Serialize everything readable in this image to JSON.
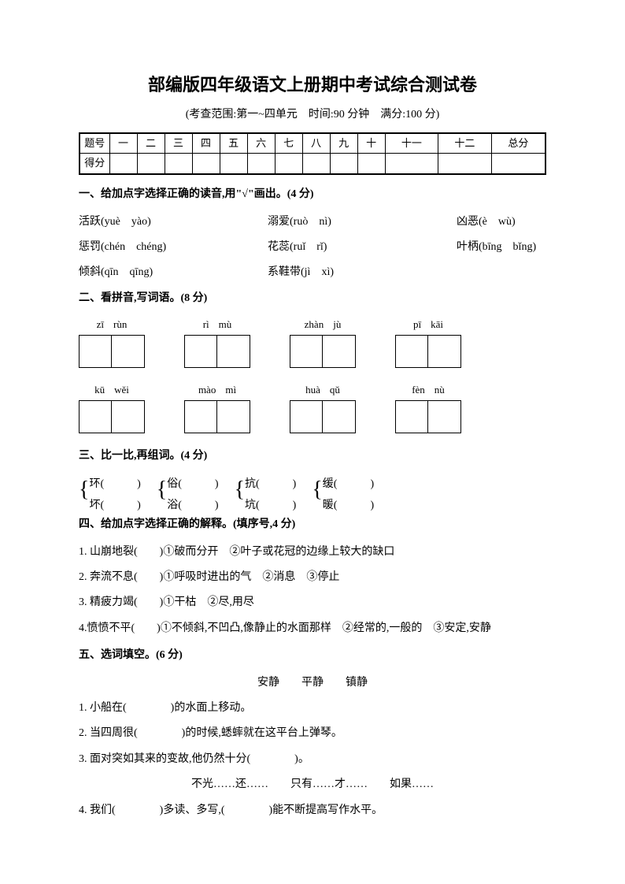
{
  "title": "部编版四年级语文上册期中考试综合测试卷",
  "subtitle": "(考查范围:第一~四单元　时间:90 分钟　满分:100 分)",
  "score_table": {
    "row1": [
      "题号",
      "一",
      "二",
      "三",
      "四",
      "五",
      "六",
      "七",
      "八",
      "九",
      "十",
      "十一",
      "十二",
      "总分"
    ],
    "row2_label": "得分"
  },
  "q1": {
    "heading": "一、给加点字选择正确的读音,用\"√\"画出。(4 分)",
    "items": [
      [
        "活跃(yuè　yào)",
        "溺爱(ruò　nì)",
        "凶恶(è　wù)"
      ],
      [
        "惩罚(chén　chéng)",
        "花蕊(ruǐ　rǐ)",
        "叶柄(bīng　bǐng)"
      ],
      [
        "倾斜(qīn　qīng)",
        "系鞋带(jì　xì)",
        ""
      ]
    ]
  },
  "q2": {
    "heading": "二、看拼音,写词语。(8 分)",
    "rows": [
      [
        [
          "zī",
          "rùn"
        ],
        [
          "rì",
          "mù"
        ],
        [
          "zhàn",
          "jù"
        ],
        [
          "pī",
          "kāi"
        ]
      ],
      [
        [
          "kū",
          "wěi"
        ],
        [
          "mào",
          "mì"
        ],
        [
          "huà",
          "qǔ"
        ],
        [
          "fèn",
          "nù"
        ]
      ]
    ]
  },
  "q3": {
    "heading": "三、比一比,再组词。(4 分)",
    "pairs": [
      [
        [
          "环(",
          "坏("
        ],
        [
          "俗(",
          "浴("
        ],
        [
          "抗(",
          "坑("
        ],
        [
          "缓(",
          "暖("
        ]
      ]
    ]
  },
  "q4": {
    "heading": "四、给加点字选择正确的解释。(填序号,4 分)",
    "items": [
      "1. 山崩地裂(　　)①破而分开　②叶子或花冠的边缘上较大的缺口",
      "2. 奔流不息(　　)①呼吸时进出的气　②消息　③停止",
      "3. 精疲力竭(　　)①干枯　②尽,用尽",
      "4.愤愤不平(　　)①不倾斜,不凹凸,像静止的水面那样　②经常的,一般的　③安定,安静"
    ]
  },
  "q5": {
    "heading": "五、选词填空。(6 分)",
    "words1": "安静　　平静　　镇静",
    "items1": [
      "1. 小船在(　　　　)的水面上移动。",
      "2. 当四周很(　　　　)的时候,蟋蟀就在这平台上弹琴。",
      "3. 面对突如其来的变故,他仍然十分(　　　　)。"
    ],
    "words2": "不光……还……　　只有……才……　　如果……",
    "items2": [
      "4. 我们(　　　　)多读、多写,(　　　　)能不断提高写作水平。"
    ]
  },
  "colors": {
    "bg": "#ffffff",
    "text": "#000000",
    "border": "#000000"
  }
}
